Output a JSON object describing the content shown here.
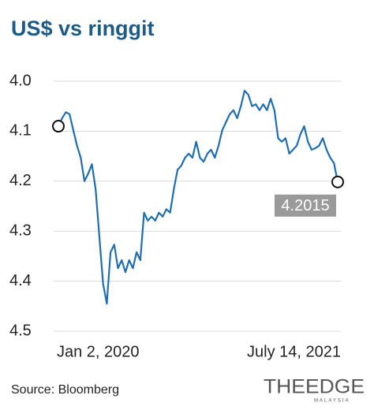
{
  "chart_data": {
    "type": "line",
    "title": "US$ vs ringgit",
    "categories": [
      "Jan 2, 2020",
      null,
      null,
      null,
      null,
      null,
      null,
      null,
      null,
      null,
      null,
      null,
      null,
      null,
      null,
      null,
      null,
      null,
      null,
      null,
      null,
      null,
      null,
      null,
      null,
      null,
      null,
      null,
      null,
      null,
      null,
      null,
      null,
      null,
      null,
      null,
      null,
      null,
      null,
      null,
      null,
      null,
      null,
      null,
      null,
      null,
      null,
      null,
      null,
      null,
      null,
      null,
      null,
      null,
      null,
      null,
      null,
      null,
      null,
      null,
      null,
      null,
      null,
      null,
      null,
      null,
      null,
      null,
      null,
      null,
      null,
      null,
      null,
      null,
      null,
      "July 14, 2021"
    ],
    "values": [
      4.09,
      4.074,
      4.062,
      4.066,
      4.098,
      4.129,
      4.153,
      4.2,
      4.185,
      4.166,
      4.216,
      4.311,
      4.405,
      4.445,
      4.342,
      4.327,
      4.374,
      4.358,
      4.382,
      4.358,
      4.374,
      4.342,
      4.358,
      4.263,
      4.279,
      4.271,
      4.279,
      4.263,
      4.271,
      4.256,
      4.263,
      4.216,
      4.177,
      4.169,
      4.153,
      4.145,
      4.153,
      4.121,
      4.153,
      4.161,
      4.145,
      4.137,
      4.153,
      4.129,
      4.098,
      4.082,
      4.066,
      4.058,
      4.074,
      4.05,
      4.019,
      4.027,
      4.05,
      4.046,
      4.058,
      4.046,
      4.058,
      4.035,
      4.058,
      4.114,
      4.121,
      4.114,
      4.145,
      4.137,
      4.129,
      4.106,
      4.09,
      4.121,
      4.137,
      4.134,
      4.129,
      4.114,
      4.137,
      4.153,
      4.164,
      4.2015
    ],
    "color": "#1f6db3",
    "ylim": [
      4,
      4.5
    ],
    "inverted_y": true,
    "yticks": [
      {
        "value": 4,
        "label": "4.0"
      },
      4.1,
      4.2,
      4.3,
      4.4,
      4.5
    ],
    "grid": true,
    "source": "Source: Bloomberg",
    "logo": {
      "main": "THEEDGE",
      "sub": "MALAYSIA"
    }
  }
}
